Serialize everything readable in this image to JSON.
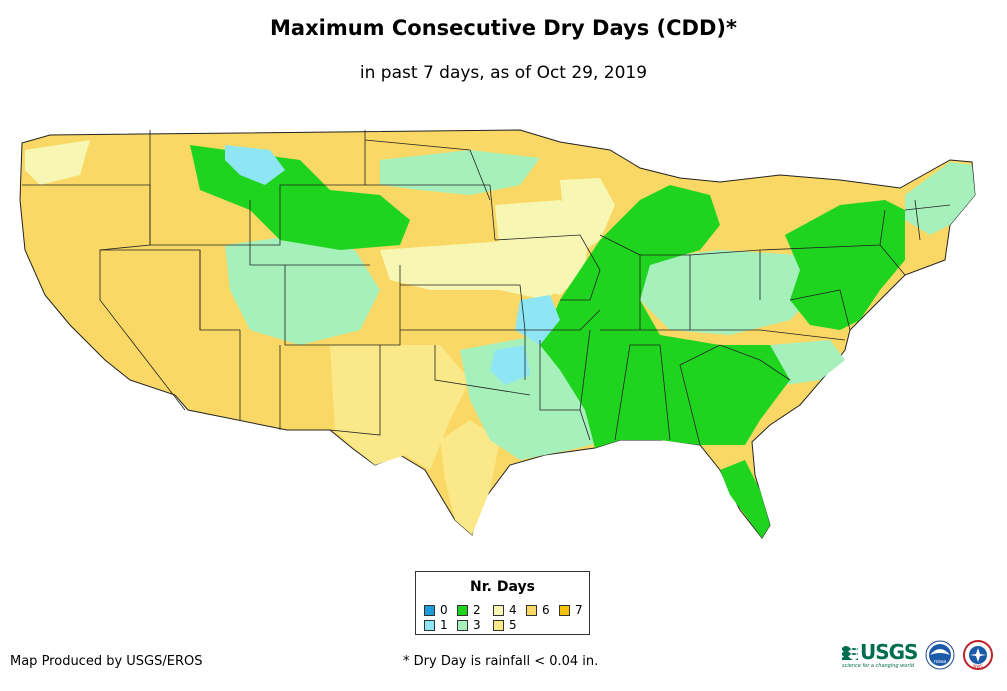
{
  "title": "Maximum Consecutive Dry Days (CDD)*",
  "subtitle": "in past 7 days, as of Oct 29, 2019",
  "legend": {
    "title": "Nr. Days",
    "items": [
      {
        "label": "0",
        "color": "#1f9bd9"
      },
      {
        "label": "1",
        "color": "#8ee6f5"
      },
      {
        "label": "2",
        "color": "#1ed41e"
      },
      {
        "label": "3",
        "color": "#a6f0bc"
      },
      {
        "label": "4",
        "color": "#f7f7b3"
      },
      {
        "label": "5",
        "color": "#fae889"
      },
      {
        "label": "6",
        "color": "#fad866"
      },
      {
        "label": "7",
        "color": "#f5c20a"
      }
    ]
  },
  "credit": "Map Produced by USGS/EROS",
  "footnote": "* Dry Day is rainfall < 0.04 in.",
  "logos": {
    "usgs_word": "USGS",
    "usgs_tagline": "science for a changing world",
    "noaa": "noaa",
    "nws": "NWS"
  }
}
